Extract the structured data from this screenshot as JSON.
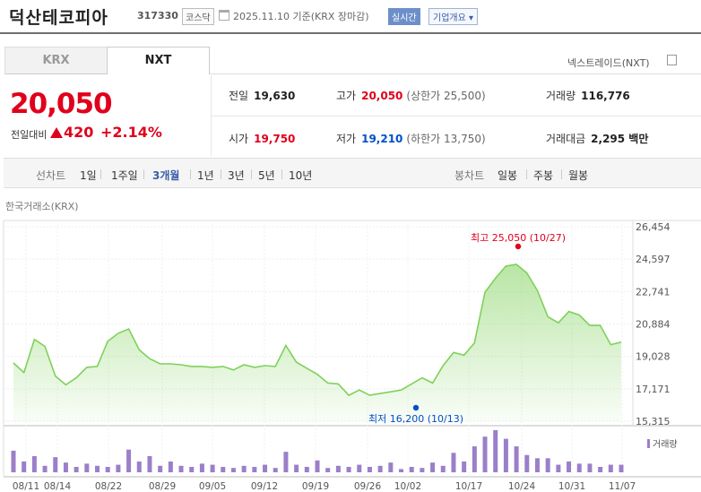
{
  "header": {
    "stock_name": "덕산테코피아",
    "stock_code": "317330",
    "market_badge": "코스닥",
    "date_text": "2025.11.10  기준(KRX 장마감)",
    "realtime_button": "실시간",
    "company_info_button": "기업개요 ▾"
  },
  "tabs": [
    {
      "label": "KRX",
      "active": false
    },
    {
      "label": "NXT",
      "active": true
    }
  ],
  "nxt_trade_label": "넥스트레이드(NXT)",
  "quote": {
    "price": "20,050",
    "change_label": "전일대비",
    "change_value": "420",
    "change_pct": "+2.14%",
    "direction": "up"
  },
  "summary": {
    "prev_close": {
      "label": "전일",
      "value": "19,630"
    },
    "high": {
      "label": "고가",
      "value": "20,050",
      "sub": "(상한가 25,500)"
    },
    "volume": {
      "label": "거래량",
      "value": "116,776"
    },
    "open": {
      "label": "시가",
      "value": "19,750"
    },
    "low": {
      "label": "저가",
      "value": "19,210",
      "sub": "(하한가 13,750)"
    },
    "amount": {
      "label": "거래대금",
      "value": "2,295 백만"
    }
  },
  "period_bar": {
    "chart_label": "선차트",
    "periods": [
      "1일",
      "1주일",
      "3개월",
      "1년",
      "3년",
      "5년",
      "10년"
    ],
    "active_period": "3개월",
    "candle_label": "봉차트",
    "candles": [
      "일봉",
      "주봉",
      "월봉"
    ]
  },
  "chart_source": "한국거래소(KRX)",
  "colors": {
    "up": "#e0001b",
    "down": "#0050c8",
    "line": "#7fd15a",
    "volume_bar": "#9b7fc9",
    "accent": "#3b5ea8"
  },
  "chart_data": {
    "type": "area",
    "x_tick_labels": [
      "08/11",
      "08/14",
      "08/22",
      "08/29",
      "09/05",
      "09/12",
      "09/19",
      "09/26",
      "10/02",
      "10/17",
      "10/24",
      "10/31",
      "11/07"
    ],
    "y_tick_labels": [
      "26,454",
      "24,597",
      "22,741",
      "20,884",
      "19,028",
      "17,171",
      "15,315"
    ],
    "ylim": [
      15315,
      26454
    ],
    "prices": [
      18650,
      18100,
      20000,
      19600,
      17900,
      17400,
      17800,
      18400,
      18450,
      19900,
      20350,
      20600,
      19400,
      18900,
      18600,
      18600,
      18550,
      18450,
      18450,
      18400,
      18450,
      18250,
      18550,
      18400,
      18500,
      18450,
      19650,
      18700,
      18350,
      18000,
      17500,
      17450,
      16800,
      17100,
      16800,
      16900,
      17000,
      17100,
      17450,
      17800,
      17500,
      18500,
      19250,
      19100,
      19800,
      22700,
      23500,
      24200,
      24300,
      23800,
      22800,
      21300,
      20950,
      21600,
      21400,
      20800,
      20800,
      19700,
      19850
    ],
    "volumes": [
      20,
      10,
      15,
      6,
      14,
      9,
      5,
      8,
      6,
      5,
      7,
      21,
      10,
      15,
      6,
      10,
      6,
      5,
      8,
      7,
      5,
      4,
      6,
      5,
      7,
      4,
      19,
      7,
      5,
      11,
      4,
      6,
      5,
      7,
      5,
      6,
      9,
      3,
      5,
      4,
      9,
      6,
      18,
      10,
      24,
      33,
      39,
      31,
      24,
      16,
      13,
      13,
      7,
      10,
      8,
      8,
      5,
      7,
      7
    ],
    "max_annotation": "최고 25,050 (10/27)",
    "min_annotation": "최저 16,200 (10/13)",
    "volume_legend": "거래량",
    "grid": true
  }
}
